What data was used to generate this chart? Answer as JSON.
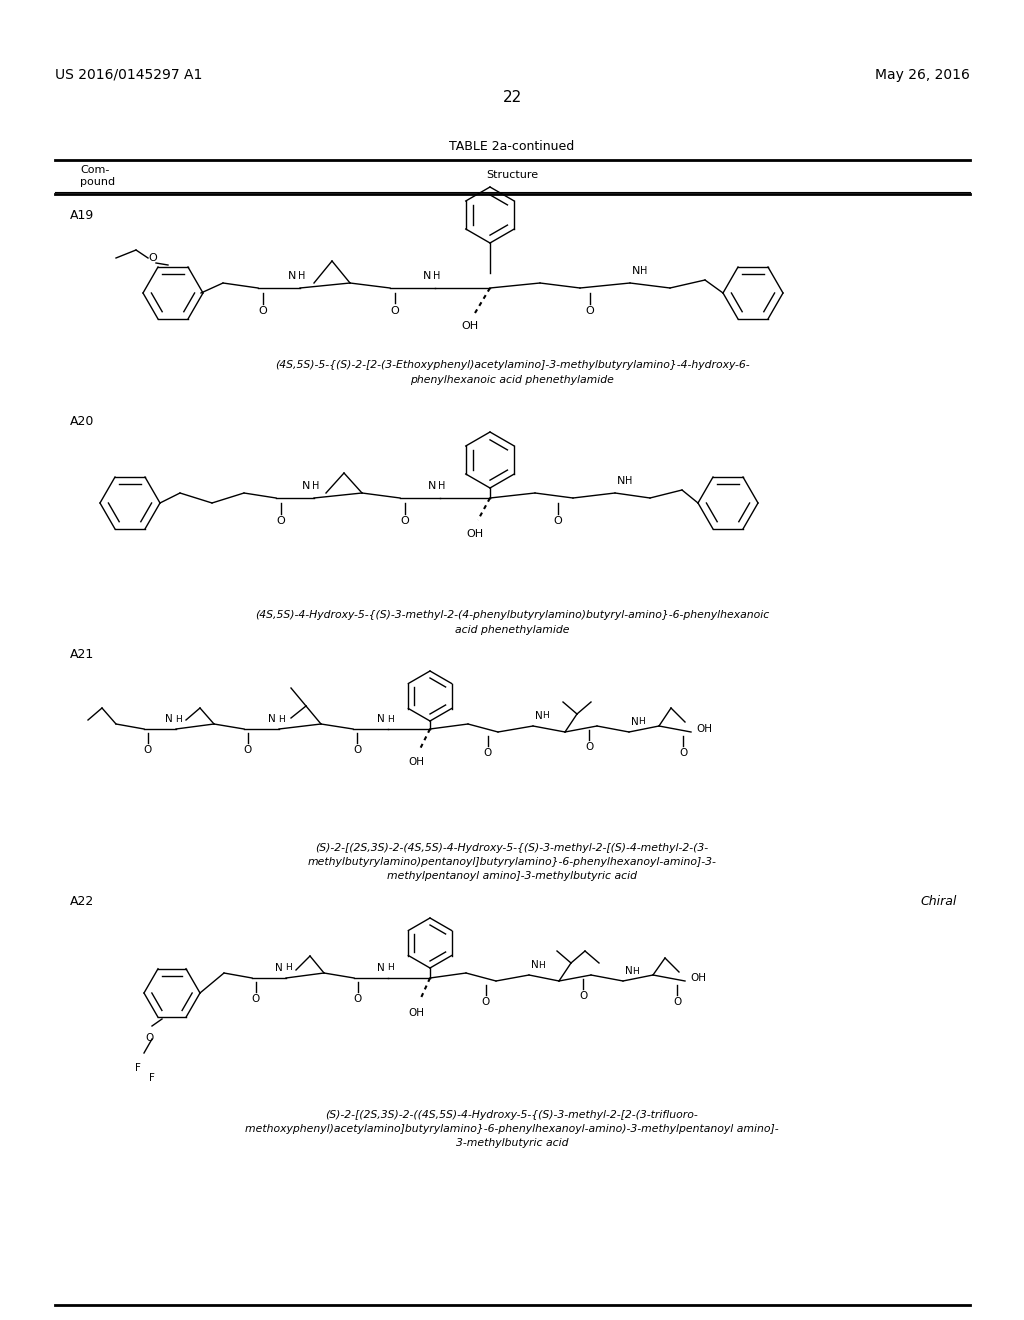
{
  "page_number": "22",
  "patent_number": "US 2016/0145297 A1",
  "patent_date": "May 26, 2016",
  "table_title": "TABLE 2a-continued",
  "col1_header_line1": "Com-",
  "col1_header_line2": "pound",
  "col2_header": "Structure",
  "background_color": "#ffffff",
  "text_color": "#000000",
  "line_color": "#000000",
  "compounds": [
    {
      "id": "A19",
      "name_line1": "(4S,5S)-5-{(S)-2-[2-(3-Ethoxyphenyl)acetylamino]-3-methylbutyrylamino}-4-hydroxy-6-",
      "name_line2": "phenylhexanoic acid phenethylamide"
    },
    {
      "id": "A20",
      "name_line1": "(4S,5S)-4-Hydroxy-5-{(S)-3-methyl-2-(4-phenylbutyrylamino)butyryl-amino}-6-phenylhexanoic",
      "name_line2": "acid phenethylamide"
    },
    {
      "id": "A21",
      "name_line1": "(S)-2-[(2S,3S)-2-(4S,5S)-4-Hydroxy-5-{(S)-3-methyl-2-[(S)-4-methyl-2-(3-",
      "name_line2": "methylbutyrylamino)pentanoyl]butyrylamino}-6-phenylhexanoyl-amino]-3-",
      "name_line3": "methylpentanoyl amino]-3-methylbutyric acid"
    },
    {
      "id": "A22",
      "chiral": "Chiral",
      "name_line1": "(S)-2-[(2S,3S)-2-((4S,5S)-4-Hydroxy-5-{(S)-3-methyl-2-[2-(3-trifluoro-",
      "name_line2": "methoxyphenyl)acetylamino]butyrylamino}-6-phenylhexanoyl-amino)-3-methylpentanoyl amino]-",
      "name_line3": "3-methylbutyric acid"
    }
  ]
}
